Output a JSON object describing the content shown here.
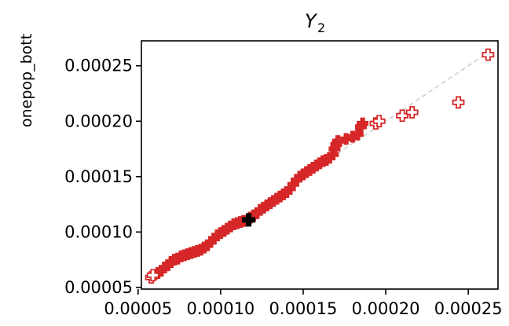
{
  "chart_data": {
    "type": "scatter",
    "title_main": "Y",
    "title_sub": "2",
    "ylabel": "onepop_bott",
    "xlabel": "",
    "xlim": [
      5.2e-05,
      0.000268
    ],
    "ylim": [
      4.85e-05,
      0.0002725
    ],
    "xticks": [
      5e-05,
      0.0001,
      0.00015,
      0.0002,
      0.00025
    ],
    "xtick_labels": [
      "0.00005",
      "0.00010",
      "0.00015",
      "0.00020",
      "0.00025"
    ],
    "yticks": [
      5e-05,
      0.0001,
      0.00015,
      0.0002,
      0.00025
    ],
    "ytick_labels": [
      "0.00005",
      "0.00010",
      "0.00015",
      "0.00020",
      "0.00025"
    ],
    "grid": false,
    "colors": {
      "points": "#d62728",
      "highlight": "#000000",
      "reference_line": "#cccccc"
    },
    "reference_line": {
      "from": [
        6e-05,
        6e-05
      ],
      "to": [
        0.00026,
        0.00026
      ],
      "style": "dashed"
    },
    "series": [
      {
        "marker": "filled-plus",
        "points": [
          [
            6.2e-05,
            6.3e-05
          ],
          [
            6.4e-05,
            6.5e-05
          ],
          [
            6.6e-05,
            6.8e-05
          ],
          [
            6.8e-05,
            7e-05
          ],
          [
            7e-05,
            7.3e-05
          ],
          [
            7.2e-05,
            7.5e-05
          ],
          [
            7.4e-05,
            7.6e-05
          ],
          [
            7.6e-05,
            7.8e-05
          ],
          [
            7.8e-05,
            7.9e-05
          ],
          [
            8e-05,
            8e-05
          ],
          [
            8.2e-05,
            8.1e-05
          ],
          [
            8.4e-05,
            8.2e-05
          ],
          [
            8.6e-05,
            8.3e-05
          ],
          [
            8.8e-05,
            8.4e-05
          ],
          [
            9e-05,
            8.6e-05
          ],
          [
            9.2e-05,
            8.8e-05
          ],
          [
            9.4e-05,
            9.1e-05
          ],
          [
            9.6e-05,
            9.4e-05
          ],
          [
            9.8e-05,
            9.7e-05
          ],
          [
            0.0001,
            9.9e-05
          ],
          [
            0.000102,
            0.000101
          ],
          [
            0.000104,
            0.000103
          ],
          [
            0.000106,
            0.000105
          ],
          [
            0.000108,
            0.000107
          ],
          [
            0.00011,
            0.000108
          ],
          [
            0.000112,
            0.000109
          ],
          [
            0.000114,
            0.00011
          ],
          [
            0.000118,
            0.000113
          ],
          [
            0.00012,
            0.000115
          ],
          [
            0.000122,
            0.000117
          ],
          [
            0.000124,
            0.00012
          ],
          [
            0.000126,
            0.000122
          ],
          [
            0.000128,
            0.000124
          ],
          [
            0.00013,
            0.000126
          ],
          [
            0.000132,
            0.000128
          ],
          [
            0.000134,
            0.00013
          ],
          [
            0.000136,
            0.000132
          ],
          [
            0.000138,
            0.000134
          ],
          [
            0.00014,
            0.000136
          ],
          [
            0.000142,
            0.000139
          ],
          [
            0.000144,
            0.000143
          ],
          [
            0.000146,
            0.000147
          ],
          [
            0.000148,
            0.00015
          ],
          [
            0.00015,
            0.000152
          ],
          [
            0.000152,
            0.000154
          ],
          [
            0.000154,
            0.000156
          ],
          [
            0.000156,
            0.000158
          ],
          [
            0.000158,
            0.00016
          ],
          [
            0.00016,
            0.000162
          ],
          [
            0.000162,
            0.000164
          ],
          [
            0.000164,
            0.000165
          ],
          [
            0.000166,
            0.000167
          ],
          [
            0.000168,
            0.00017
          ],
          [
            0.000169,
            0.000175
          ],
          [
            0.00017,
            0.000179
          ],
          [
            0.000171,
            0.000182
          ],
          [
            0.000176,
            0.000184
          ],
          [
            0.00018,
            0.000186
          ],
          [
            0.000183,
            0.000188
          ],
          [
            0.000185,
            0.000195
          ],
          [
            0.000186,
            0.000198
          ]
        ]
      },
      {
        "marker": "open-plus",
        "points": [
          [
            5.8e-05,
            5.9e-05
          ],
          [
            5.9e-05,
            6.1e-05
          ],
          [
            0.000194,
            0.000198
          ],
          [
            0.000196,
            0.0002
          ],
          [
            0.00021,
            0.000205
          ],
          [
            0.000216,
            0.000208
          ],
          [
            0.000244,
            0.000217
          ],
          [
            0.000262,
            0.00026
          ]
        ]
      },
      {
        "marker": "highlight",
        "points": [
          [
            0.000117,
            0.000111
          ]
        ]
      }
    ]
  }
}
